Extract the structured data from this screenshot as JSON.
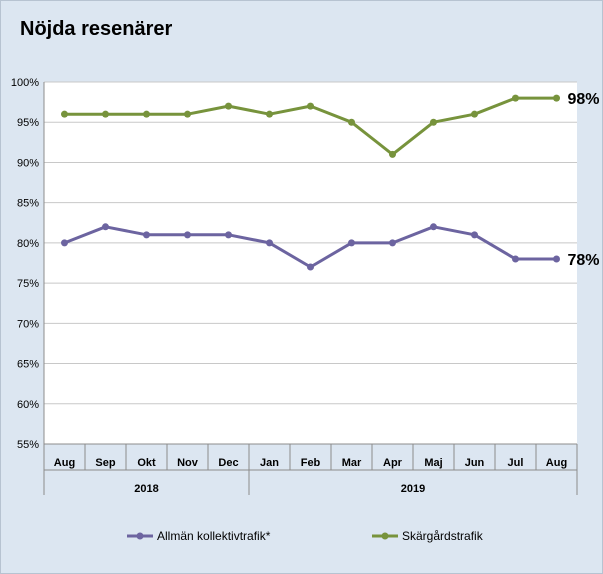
{
  "chart_data": {
    "type": "line",
    "title": "Nöjda resenärer",
    "categories": [
      "Aug",
      "Sep",
      "Okt",
      "Nov",
      "Dec",
      "Jan",
      "Feb",
      "Mar",
      "Apr",
      "Maj",
      "Jun",
      "Jul",
      "Aug"
    ],
    "year_groups": [
      {
        "label": "2018",
        "from": 0,
        "to": 4
      },
      {
        "label": "2019",
        "from": 5,
        "to": 12
      }
    ],
    "ylim": [
      55,
      100
    ],
    "ytick_step": 5,
    "ytick_suffix": "%",
    "grid": true,
    "legend_position": "bottom",
    "series": [
      {
        "name": "Allmän kollektivtrafik*",
        "color": "#6c64a0",
        "values": [
          80,
          82,
          81,
          81,
          81,
          80,
          77,
          80,
          80,
          82,
          81,
          78,
          78
        ],
        "end_label": "78%"
      },
      {
        "name": "Skärgårdstrafik",
        "color": "#77933c",
        "values": [
          96,
          96,
          96,
          96,
          97,
          96,
          97,
          95,
          91,
          95,
          96,
          98,
          98
        ],
        "end_label": "98%"
      }
    ]
  }
}
